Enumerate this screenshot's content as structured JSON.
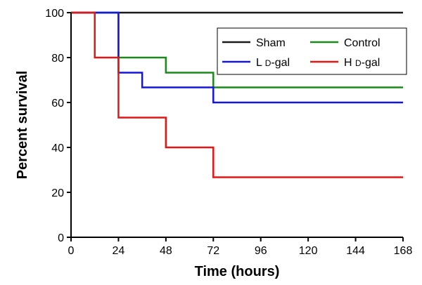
{
  "chart_data": {
    "type": "line",
    "step": true,
    "xlabel": "Time (hours)",
    "ylabel": "Percent survival",
    "xlim": [
      0,
      168
    ],
    "ylim": [
      0,
      100
    ],
    "xticks": [
      0,
      24,
      48,
      72,
      96,
      120,
      144,
      168
    ],
    "yticks": [
      0,
      20,
      40,
      60,
      80,
      100
    ],
    "grid": false,
    "legend_placement": "top-right",
    "series": [
      {
        "name": "Sham",
        "color": "#1a1a1a",
        "points": [
          [
            0,
            100
          ],
          [
            168,
            100
          ]
        ]
      },
      {
        "name": "Control",
        "color": "#1a8a1a",
        "points": [
          [
            0,
            100
          ],
          [
            24,
            80
          ],
          [
            48,
            73.3
          ],
          [
            72,
            66.7
          ],
          [
            168,
            66.7
          ]
        ]
      },
      {
        "name": "L D-gal",
        "name_parts": {
          "lead": "L ",
          "small": "d",
          "rest": "-gal"
        },
        "color": "#1515e0",
        "points": [
          [
            0,
            100
          ],
          [
            24,
            73.3
          ],
          [
            36,
            66.7
          ],
          [
            72,
            60
          ],
          [
            168,
            60
          ]
        ]
      },
      {
        "name": "H D-gal",
        "name_parts": {
          "lead": "H ",
          "small": "d",
          "rest": "-gal"
        },
        "color": "#e31515",
        "points": [
          [
            0,
            100
          ],
          [
            12,
            80
          ],
          [
            24,
            53.3
          ],
          [
            48,
            40
          ],
          [
            72,
            26.7
          ],
          [
            168,
            26.7
          ]
        ]
      }
    ]
  }
}
